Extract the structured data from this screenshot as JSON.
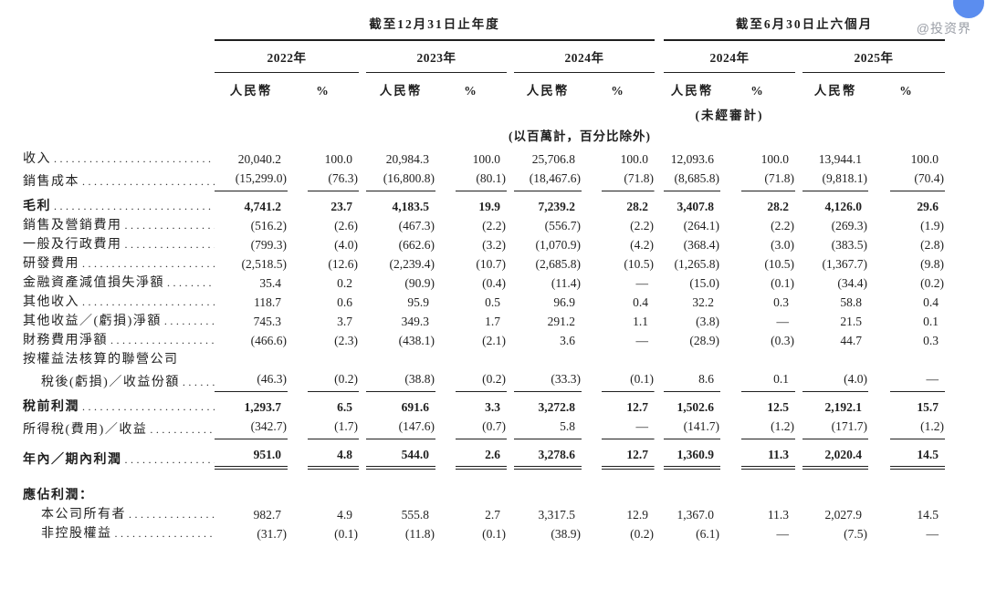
{
  "watermark": "@投资界",
  "decoration": {
    "circle_color": "#5b8def"
  },
  "table": {
    "col_groups": [
      {
        "label": "截至12月31日止年度",
        "years": [
          "2022年",
          "2023年",
          "2024年"
        ]
      },
      {
        "label": "截至6月30日止六個月",
        "years": [
          "2024年",
          "2025年"
        ]
      }
    ],
    "currency_header": "人民幣",
    "percent_header": "%",
    "unaudited_note": "(未經審計)",
    "unit_note": "(以百萬計，百分比除外)",
    "rows": [
      {
        "label": "收入",
        "dots": true,
        "values": [
          "20,040.2",
          "100.0",
          "20,984.3",
          "100.0",
          "25,706.8",
          "100.0",
          "12,093.6",
          "100.0",
          "13,944.1",
          "100.0"
        ]
      },
      {
        "label": "銷售成本",
        "dots": true,
        "rule": "single",
        "values": [
          "(15,299.0)",
          "(76.3)",
          "(16,800.8)",
          "(80.1)",
          "(18,467.6)",
          "(71.8)",
          "(8,685.8)",
          "(71.8)",
          "(9,818.1)",
          "(70.4)"
        ]
      },
      {
        "label": "毛利",
        "dots": true,
        "bold": true,
        "values": [
          "4,741.2",
          "23.7",
          "4,183.5",
          "19.9",
          "7,239.2",
          "28.2",
          "3,407.8",
          "28.2",
          "4,126.0",
          "29.6"
        ]
      },
      {
        "label": "銷售及營銷費用",
        "dots": true,
        "values": [
          "(516.2)",
          "(2.6)",
          "(467.3)",
          "(2.2)",
          "(556.7)",
          "(2.2)",
          "(264.1)",
          "(2.2)",
          "(269.3)",
          "(1.9)"
        ]
      },
      {
        "label": "一般及行政費用",
        "dots": true,
        "values": [
          "(799.3)",
          "(4.0)",
          "(662.6)",
          "(3.2)",
          "(1,070.9)",
          "(4.2)",
          "(368.4)",
          "(3.0)",
          "(383.5)",
          "(2.8)"
        ]
      },
      {
        "label": "研發費用",
        "dots": true,
        "values": [
          "(2,518.5)",
          "(12.6)",
          "(2,239.4)",
          "(10.7)",
          "(2,685.8)",
          "(10.5)",
          "(1,265.8)",
          "(10.5)",
          "(1,367.7)",
          "(9.8)"
        ]
      },
      {
        "label": "金融資產減值損失淨額",
        "dots": true,
        "values": [
          "35.4",
          "0.2",
          "(90.9)",
          "(0.4)",
          "(11.4)",
          "—",
          "(15.0)",
          "(0.1)",
          "(34.4)",
          "(0.2)"
        ]
      },
      {
        "label": "其他收入",
        "dots": true,
        "values": [
          "118.7",
          "0.6",
          "95.9",
          "0.5",
          "96.9",
          "0.4",
          "32.2",
          "0.3",
          "58.8",
          "0.4"
        ]
      },
      {
        "label": "其他收益／(虧損)淨額",
        "dots": true,
        "values": [
          "745.3",
          "3.7",
          "349.3",
          "1.7",
          "291.2",
          "1.1",
          "(3.8)",
          "—",
          "21.5",
          "0.1"
        ]
      },
      {
        "label": "財務費用淨額",
        "dots": true,
        "values": [
          "(466.6)",
          "(2.3)",
          "(438.1)",
          "(2.1)",
          "3.6",
          "—",
          "(28.9)",
          "(0.3)",
          "44.7",
          "0.3"
        ]
      },
      {
        "label": "按權益法核算的聯營公司",
        "dots": false,
        "values": []
      },
      {
        "label": "稅後(虧損)／收益份額",
        "dots": true,
        "indent": true,
        "rule": "single",
        "values": [
          "(46.3)",
          "(0.2)",
          "(38.8)",
          "(0.2)",
          "(33.3)",
          "(0.1)",
          "8.6",
          "0.1",
          "(4.0)",
          "—"
        ]
      },
      {
        "label": "稅前利潤",
        "dots": true,
        "bold": true,
        "values": [
          "1,293.7",
          "6.5",
          "691.6",
          "3.3",
          "3,272.8",
          "12.7",
          "1,502.6",
          "12.5",
          "2,192.1",
          "15.7"
        ]
      },
      {
        "label": "所得稅(費用)／收益",
        "dots": true,
        "rule": "single",
        "values": [
          "(342.7)",
          "(1.7)",
          "(147.6)",
          "(0.7)",
          "5.8",
          "—",
          "(141.7)",
          "(1.2)",
          "(171.7)",
          "(1.2)"
        ]
      },
      {
        "label": "年內／期內利潤",
        "dots": true,
        "bold": true,
        "rule": "double",
        "values": [
          "951.0",
          "4.8",
          "544.0",
          "2.6",
          "3,278.6",
          "12.7",
          "1,360.9",
          "11.3",
          "2,020.4",
          "14.5"
        ]
      },
      {
        "label": "應佔利潤：",
        "dots": false,
        "bold": true,
        "gap_before": true,
        "values": []
      },
      {
        "label": "本公司所有者",
        "dots": true,
        "indent": true,
        "values": [
          "982.7",
          "4.9",
          "555.8",
          "2.7",
          "3,317.5",
          "12.9",
          "1,367.0",
          "11.3",
          "2,027.9",
          "14.5"
        ]
      },
      {
        "label": "非控股權益",
        "dots": true,
        "indent": true,
        "values": [
          "(31.7)",
          "(0.1)",
          "(11.8)",
          "(0.1)",
          "(38.9)",
          "(0.2)",
          "(6.1)",
          "—",
          "(7.5)",
          "—"
        ]
      }
    ]
  }
}
